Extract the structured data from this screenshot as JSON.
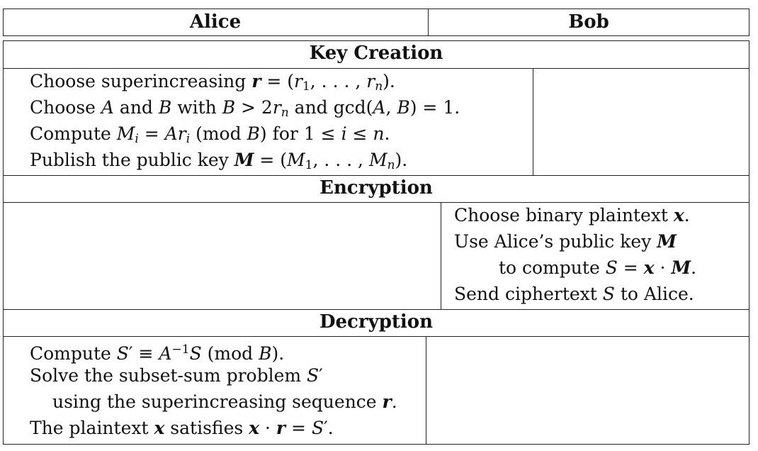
{
  "header": {
    "alice": "Alice",
    "bob": "Bob"
  },
  "sections": {
    "key_creation": {
      "title": "Key Creation",
      "lines": [
        "Choose superincreasing r = (r1, . . . , rn).",
        "Choose A and B with B > 2rn and gcd(A, B) = 1.",
        "Compute Mi = Ari (mod B) for 1 ≤ i ≤ n.",
        "Publish the public key M = (M1, . . . , Mn)."
      ]
    },
    "encryption": {
      "title": "Encryption",
      "lines": [
        "Choose binary plaintext x.",
        "Use Alice’s public key M",
        "to compute S = x · M.",
        "Send ciphertext S to Alice."
      ]
    },
    "decryption": {
      "title": "Decryption",
      "lines": [
        "Compute S′ ≡ A−1S (mod B).",
        "Solve the subset-sum problem S′",
        "using the superincreasing sequence r.",
        "The plaintext x satisfies x · r = S′."
      ]
    }
  }
}
